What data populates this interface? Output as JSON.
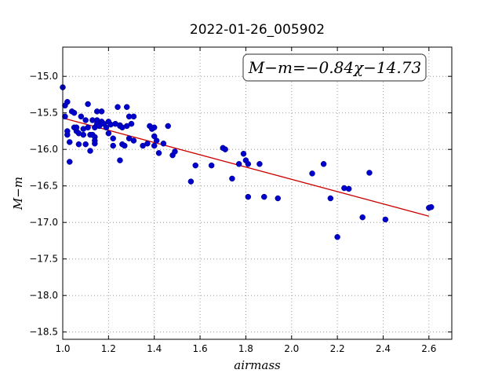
{
  "chart_data": {
    "type": "scatter",
    "title": "2022-01-26_005902",
    "xlabel": "airmass",
    "ylabel": "M−m",
    "xlim": [
      1.0,
      2.7
    ],
    "ylim": [
      -18.6,
      -14.6
    ],
    "y_inverted": true,
    "grid": true,
    "x_ticks": [
      1.0,
      1.2,
      1.4,
      1.6,
      1.8,
      2.0,
      2.2,
      2.4,
      2.6
    ],
    "x_tick_labels": [
      "1.0",
      "1.2",
      "1.4",
      "1.6",
      "1.8",
      "2.0",
      "2.2",
      "2.4",
      "2.6"
    ],
    "y_ticks": [
      -15.0,
      -15.5,
      -16.0,
      -16.5,
      -17.0,
      -17.5,
      -18.0,
      -18.5
    ],
    "y_tick_labels": [
      "−15.0",
      "−15.5",
      "−16.0",
      "−16.5",
      "−17.0",
      "−17.5",
      "−18.0",
      "−18.5"
    ],
    "annotation": "M−m=−0.84χ−14.73",
    "fit": {
      "slope": -0.84,
      "intercept": -14.73,
      "x_range": [
        1.0,
        2.6
      ],
      "color": "#cc0000"
    },
    "marker_color": "#0000cc",
    "series": [
      {
        "x": [
          1.0,
          1.01,
          1.01,
          1.02,
          1.02,
          1.02,
          1.03,
          1.03,
          1.04,
          1.05,
          1.05,
          1.06,
          1.06,
          1.07,
          1.07,
          1.08,
          1.09,
          1.09,
          1.1,
          1.1,
          1.11,
          1.11,
          1.12,
          1.12,
          1.13,
          1.13,
          1.14,
          1.14,
          1.14,
          1.14,
          1.15,
          1.15,
          1.15,
          1.16,
          1.17,
          1.17,
          1.18,
          1.19,
          1.2,
          1.2,
          1.21,
          1.22,
          1.22,
          1.23,
          1.24,
          1.25,
          1.25,
          1.25,
          1.26,
          1.26,
          1.27,
          1.28,
          1.28,
          1.29,
          1.29,
          1.3,
          1.31,
          1.31,
          1.35,
          1.37,
          1.38,
          1.39,
          1.4,
          1.4,
          1.4,
          1.41,
          1.42,
          1.44,
          1.46,
          1.48,
          1.49,
          1.56,
          1.58,
          1.65,
          1.7,
          1.71,
          1.74,
          1.77,
          1.79,
          1.8,
          1.81,
          1.81,
          1.86,
          1.88,
          1.94,
          2.09,
          2.14,
          2.17,
          2.2,
          2.23,
          2.25,
          2.31,
          2.34,
          2.41,
          2.6,
          2.61
        ],
        "y": [
          -15.15,
          -15.4,
          -15.55,
          -15.35,
          -15.8,
          -15.75,
          -15.9,
          -16.17,
          -15.48,
          -15.7,
          -15.5,
          -15.75,
          -15.7,
          -15.78,
          -15.93,
          -15.55,
          -15.72,
          -15.8,
          -15.6,
          -15.93,
          -15.38,
          -15.7,
          -16.02,
          -15.8,
          -15.6,
          -15.8,
          -15.7,
          -15.83,
          -15.88,
          -15.92,
          -15.48,
          -15.6,
          -15.65,
          -15.68,
          -15.62,
          -15.48,
          -15.65,
          -15.7,
          -15.62,
          -15.78,
          -15.66,
          -15.85,
          -15.95,
          -15.65,
          -15.42,
          -15.67,
          -15.68,
          -16.15,
          -15.7,
          -15.93,
          -15.95,
          -15.68,
          -15.42,
          -15.55,
          -15.85,
          -15.65,
          -15.55,
          -15.88,
          -15.95,
          -15.92,
          -15.68,
          -15.72,
          -15.95,
          -15.82,
          -15.7,
          -15.88,
          -16.05,
          -15.92,
          -15.68,
          -16.08,
          -16.03,
          -16.44,
          -16.22,
          -16.22,
          -15.98,
          -16.0,
          -16.4,
          -16.2,
          -16.06,
          -16.15,
          -16.2,
          -16.65,
          -16.2,
          -16.65,
          -16.67,
          -16.33,
          -16.2,
          -16.67,
          -17.2,
          -16.53,
          -16.54,
          -16.93,
          -16.32,
          -16.96,
          -16.8,
          -16.79
        ]
      }
    ]
  }
}
